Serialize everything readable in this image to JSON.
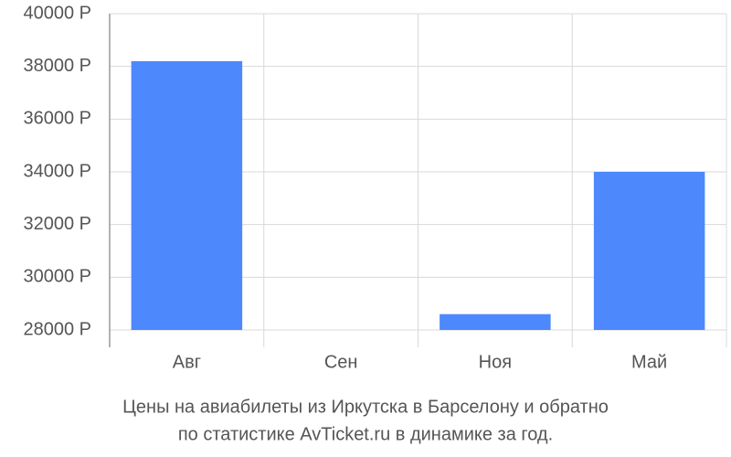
{
  "chart_data": {
    "type": "bar",
    "title": [
      "Цены на авиабилеты из Иркутска в Барселону и обратно",
      "по статистике AvTicket.ru в динамике за год."
    ],
    "categories": [
      "Авг",
      "Сен",
      "Ноя",
      "Май"
    ],
    "values": [
      38200,
      null,
      28600,
      34000
    ],
    "color": "#4d88fc",
    "ylim": [
      28000,
      40000
    ],
    "yticks": [
      {
        "value": 28000,
        "label": "28000 Р"
      },
      {
        "value": 30000,
        "label": "30000 Р"
      },
      {
        "value": 32000,
        "label": "32000 Р"
      },
      {
        "value": 34000,
        "label": "34000 Р"
      },
      {
        "value": 36000,
        "label": "36000 Р"
      },
      {
        "value": 38000,
        "label": "38000 Р"
      },
      {
        "value": 40000,
        "label": "40000 Р"
      }
    ],
    "grid": true
  }
}
